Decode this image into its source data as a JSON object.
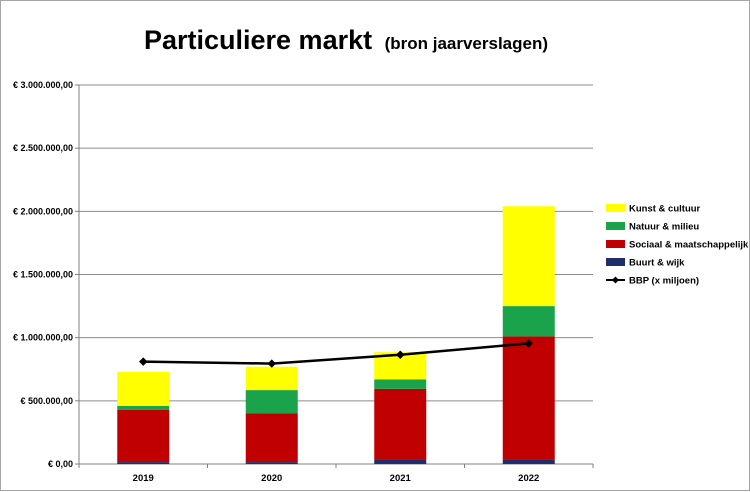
{
  "chart_data": {
    "type": "bar",
    "stacked": true,
    "title": "Particuliere markt",
    "subtitle": "(bron jaarverslagen)",
    "categories": [
      "2019",
      "2020",
      "2021",
      "2022"
    ],
    "ylim": [
      0,
      3000000
    ],
    "y_ticks": [
      {
        "value": 0,
        "label": "€ 0,00"
      },
      {
        "value": 500000,
        "label": "€ 500.000,00"
      },
      {
        "value": 1000000,
        "label": "€ 1.000.000,00"
      },
      {
        "value": 1500000,
        "label": "€ 1.500.000,00"
      },
      {
        "value": 2000000,
        "label": "€ 2.000.000,00"
      },
      {
        "value": 2500000,
        "label": "€ 2.500.000,00"
      },
      {
        "value": 3000000,
        "label": "€ 3.000.000,00"
      }
    ],
    "grid": true,
    "legend_position": "right",
    "series": [
      {
        "name": "Buurt & wijk",
        "color": "#1f2d6b",
        "values": [
          15000,
          15000,
          35000,
          35000
        ]
      },
      {
        "name": "Sociaal & maatschappelijk",
        "color": "#c00000",
        "values": [
          415000,
          385000,
          560000,
          975000
        ]
      },
      {
        "name": "Natuur & milieu",
        "color": "#1aa34a",
        "values": [
          30000,
          185000,
          75000,
          240000
        ]
      },
      {
        "name": "Kunst & cultuur",
        "color": "#ffff00",
        "values": [
          270000,
          185000,
          215000,
          790000
        ]
      }
    ],
    "line_series": {
      "name": "BBP (x miljoen)",
      "color": "#000000",
      "values": [
        810000,
        795000,
        865000,
        955000
      ]
    },
    "legend_order": [
      "Kunst & cultuur",
      "Natuur & milieu",
      "Sociaal & maatschappelijk",
      "Buurt & wijk",
      "BBP (x miljoen)"
    ]
  }
}
